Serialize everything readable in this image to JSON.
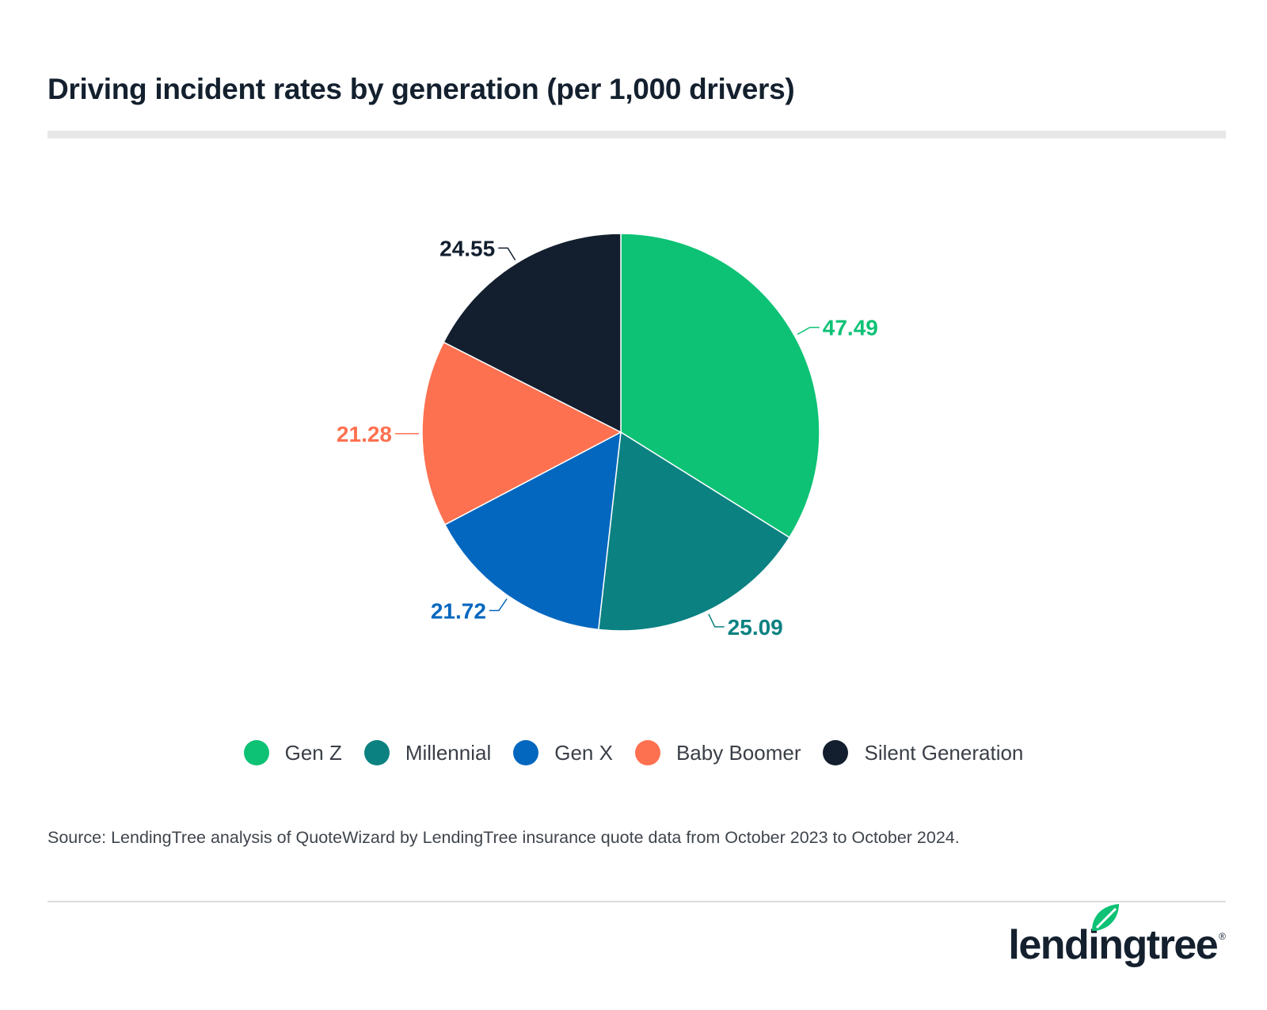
{
  "header": {
    "title": "Driving incident rates by generation (per 1,000 drivers)"
  },
  "chart_data": {
    "type": "pie",
    "title": "Driving incident rates by generation (per 1,000 drivers)",
    "slices": [
      {
        "name": "Gen Z",
        "value": 47.49,
        "label": "47.49",
        "color": "#0dc275"
      },
      {
        "name": "Millennial",
        "value": 25.09,
        "label": "25.09",
        "color": "#0b8181"
      },
      {
        "name": "Gen X",
        "value": 21.72,
        "label": "21.72",
        "color": "#0467bf"
      },
      {
        "name": "Baby Boomer",
        "value": 21.28,
        "label": "21.28",
        "color": "#fd7150"
      },
      {
        "name": "Silent Generation",
        "value": 24.55,
        "label": "24.55",
        "color": "#131f2f"
      }
    ],
    "legend_position": "bottom"
  },
  "legend": {
    "items": [
      {
        "label": "Gen Z",
        "color": "#0dc275"
      },
      {
        "label": "Millennial",
        "color": "#0b8181"
      },
      {
        "label": "Gen X",
        "color": "#0467bf"
      },
      {
        "label": "Baby Boomer",
        "color": "#fd7150"
      },
      {
        "label": "Silent Generation",
        "color": "#131f2f"
      }
    ]
  },
  "footer": {
    "source": "Source: LendingTree analysis of QuoteWizard by LendingTree insurance quote data from October 2023 to October 2024.",
    "logo_text": "lendingtree",
    "logo_icon": "leaf-icon"
  }
}
